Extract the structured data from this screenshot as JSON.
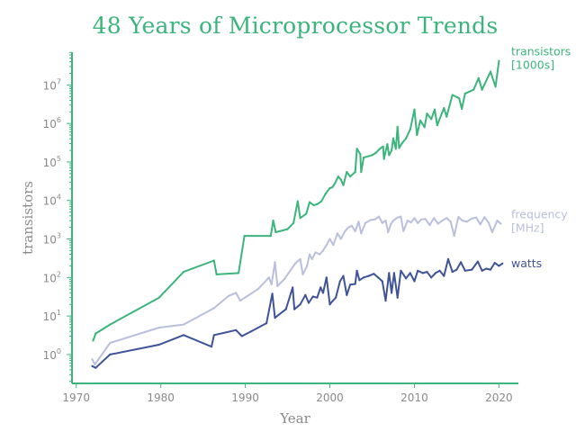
{
  "chart_data": {
    "type": "line",
    "title": "48 Years of Microprocessor Trends",
    "xlabel": "Year",
    "ylabel": "transistors",
    "xlim": [
      1969.5,
      2022.3
    ],
    "ylim_log10": [
      -0.75,
      7.85
    ],
    "y_scale": "log",
    "x_ticks": [
      1970,
      1980,
      1990,
      2000,
      2010,
      2020
    ],
    "y_ticks": [
      {
        "base": "10",
        "exp": "0"
      },
      {
        "base": "10",
        "exp": "1"
      },
      {
        "base": "10",
        "exp": "2"
      },
      {
        "base": "10",
        "exp": "3"
      },
      {
        "base": "10",
        "exp": "4"
      },
      {
        "base": "10",
        "exp": "5"
      },
      {
        "base": "10",
        "exp": "6"
      },
      {
        "base": "10",
        "exp": "7"
      }
    ],
    "grid": false,
    "colors": {
      "title": "#3bb57b",
      "axis": "#3bb57b",
      "transistors": "#3bb57b",
      "frequency": "#b9bfdc",
      "watts": "#3f5498",
      "tick": "#8a8a8a"
    },
    "series": [
      {
        "key": "transistors",
        "label_lines": [
          "transistors",
          "[1000s]"
        ],
        "color": "#3bb57b",
        "points": [
          [
            1972.0,
            2.3
          ],
          [
            1972.3,
            3.5
          ],
          [
            1974.0,
            6.0
          ],
          [
            1979.8,
            30
          ],
          [
            1982.7,
            140
          ],
          [
            1986.3,
            275
          ],
          [
            1986.6,
            120
          ],
          [
            1989.2,
            130
          ],
          [
            1989.9,
            1200
          ],
          [
            1993.0,
            1200
          ],
          [
            1993.3,
            3000
          ],
          [
            1993.6,
            1500
          ],
          [
            1995.0,
            1800
          ],
          [
            1995.7,
            2600
          ],
          [
            1996.2,
            9500
          ],
          [
            1996.5,
            3500
          ],
          [
            1997.2,
            4500
          ],
          [
            1997.6,
            9000
          ],
          [
            1998.1,
            7500
          ],
          [
            1998.5,
            8000
          ],
          [
            1999.0,
            9500
          ],
          [
            1999.5,
            15000
          ],
          [
            2000.0,
            21000
          ],
          [
            2000.3,
            22000
          ],
          [
            2000.6,
            28000
          ],
          [
            2001.0,
            42000
          ],
          [
            2001.3,
            35000
          ],
          [
            2001.6,
            25000
          ],
          [
            2002.0,
            55000
          ],
          [
            2002.4,
            42000
          ],
          [
            2003.0,
            55000
          ],
          [
            2003.2,
            220000
          ],
          [
            2003.6,
            160000
          ],
          [
            2003.7,
            55000
          ],
          [
            2004.0,
            130000
          ],
          [
            2005.0,
            150000
          ],
          [
            2005.4,
            170000
          ],
          [
            2006.0,
            230000
          ],
          [
            2006.3,
            250000
          ],
          [
            2006.4,
            120000
          ],
          [
            2006.8,
            290000
          ],
          [
            2007.0,
            150000
          ],
          [
            2007.3,
            200000
          ],
          [
            2007.5,
            410000
          ],
          [
            2007.8,
            220000
          ],
          [
            2008.0,
            820000
          ],
          [
            2008.2,
            230000
          ],
          [
            2008.5,
            300000
          ],
          [
            2009.0,
            410000
          ],
          [
            2009.5,
            700000
          ],
          [
            2010.0,
            2300000
          ],
          [
            2010.3,
            500000
          ],
          [
            2010.7,
            1200000
          ],
          [
            2011.2,
            800000
          ],
          [
            2011.5,
            1800000
          ],
          [
            2012.0,
            1300000
          ],
          [
            2012.4,
            2300000
          ],
          [
            2012.7,
            900000
          ],
          [
            2013.5,
            2500000
          ],
          [
            2013.8,
            1500000
          ],
          [
            2014.5,
            5500000
          ],
          [
            2015.3,
            4500000
          ],
          [
            2015.6,
            2400000
          ],
          [
            2016.0,
            6000000
          ],
          [
            2017.0,
            7500000
          ],
          [
            2017.6,
            15000000
          ],
          [
            2018.0,
            7500000
          ],
          [
            2019.0,
            22000000
          ],
          [
            2019.6,
            9000000
          ],
          [
            2020.0,
            42000000
          ]
        ]
      },
      {
        "key": "frequency",
        "label_lines": [
          "frequency",
          "[MHz]"
        ],
        "color": "#b9bfdc",
        "points": [
          [
            1971.9,
            0.75
          ],
          [
            1972.2,
            0.55
          ],
          [
            1974.0,
            2.0
          ],
          [
            1979.8,
            5.0
          ],
          [
            1982.7,
            6.0
          ],
          [
            1986.3,
            16
          ],
          [
            1988.0,
            33
          ],
          [
            1988.9,
            40
          ],
          [
            1989.4,
            25
          ],
          [
            1991.5,
            50
          ],
          [
            1992.8,
            100
          ],
          [
            1993.1,
            66
          ],
          [
            1993.5,
            250
          ],
          [
            1993.8,
            60
          ],
          [
            1994.6,
            90
          ],
          [
            1995.3,
            150
          ],
          [
            1995.9,
            230
          ],
          [
            1996.5,
            300
          ],
          [
            1996.8,
            120
          ],
          [
            1997.3,
            200
          ],
          [
            1997.6,
            400
          ],
          [
            1997.9,
            300
          ],
          [
            1998.3,
            450
          ],
          [
            1998.8,
            400
          ],
          [
            1999.2,
            500
          ],
          [
            1999.6,
            700
          ],
          [
            2000.0,
            1000
          ],
          [
            2000.4,
            700
          ],
          [
            2000.9,
            1400
          ],
          [
            2001.3,
            1000
          ],
          [
            2001.8,
            1600
          ],
          [
            2002.2,
            2000
          ],
          [
            2002.6,
            2200
          ],
          [
            2003.0,
            1600
          ],
          [
            2003.4,
            2800
          ],
          [
            2003.7,
            1400
          ],
          [
            2004.2,
            2600
          ],
          [
            2004.8,
            3100
          ],
          [
            2005.3,
            3200
          ],
          [
            2005.8,
            3800
          ],
          [
            2006.2,
            2600
          ],
          [
            2006.6,
            3000
          ],
          [
            2006.9,
            1500
          ],
          [
            2007.2,
            2400
          ],
          [
            2007.5,
            3000
          ],
          [
            2008.0,
            3600
          ],
          [
            2008.4,
            3800
          ],
          [
            2008.7,
            1600
          ],
          [
            2009.2,
            3000
          ],
          [
            2009.6,
            2700
          ],
          [
            2010.0,
            3500
          ],
          [
            2010.4,
            2600
          ],
          [
            2010.8,
            3200
          ],
          [
            2011.3,
            3300
          ],
          [
            2011.8,
            2300
          ],
          [
            2012.3,
            3500
          ],
          [
            2012.8,
            2500
          ],
          [
            2013.3,
            3000
          ],
          [
            2013.8,
            3500
          ],
          [
            2014.3,
            2800
          ],
          [
            2014.7,
            1200
          ],
          [
            2015.2,
            3700
          ],
          [
            2015.7,
            3000
          ],
          [
            2016.2,
            2800
          ],
          [
            2016.8,
            3400
          ],
          [
            2017.3,
            3600
          ],
          [
            2017.8,
            2400
          ],
          [
            2018.3,
            3700
          ],
          [
            2018.8,
            2600
          ],
          [
            2019.2,
            1500
          ],
          [
            2019.8,
            3000
          ],
          [
            2020.2,
            2500
          ]
        ]
      },
      {
        "key": "watts",
        "label_lines": [
          "watts"
        ],
        "color": "#3f5498",
        "points": [
          [
            1971.9,
            0.5
          ],
          [
            1972.3,
            0.45
          ],
          [
            1974.0,
            1.0
          ],
          [
            1979.8,
            1.8
          ],
          [
            1982.7,
            3.2
          ],
          [
            1986.0,
            1.6
          ],
          [
            1986.3,
            3.2
          ],
          [
            1988.9,
            4.3
          ],
          [
            1989.6,
            3.0
          ],
          [
            1990.7,
            4.0
          ],
          [
            1992.5,
            6.5
          ],
          [
            1993.2,
            38
          ],
          [
            1993.5,
            9.0
          ],
          [
            1994.8,
            15
          ],
          [
            1995.6,
            55
          ],
          [
            1995.8,
            15
          ],
          [
            1996.5,
            20
          ],
          [
            1997.1,
            35
          ],
          [
            1997.5,
            22
          ],
          [
            1998.0,
            32
          ],
          [
            1998.5,
            30
          ],
          [
            1998.9,
            55
          ],
          [
            1999.2,
            40
          ],
          [
            1999.6,
            100
          ],
          [
            2000.0,
            20
          ],
          [
            2000.3,
            24
          ],
          [
            2000.7,
            30
          ],
          [
            2001.2,
            80
          ],
          [
            2001.6,
            110
          ],
          [
            2002.0,
            35
          ],
          [
            2002.4,
            65
          ],
          [
            2003.0,
            68
          ],
          [
            2003.2,
            150
          ],
          [
            2003.5,
            85
          ],
          [
            2004.0,
            100
          ],
          [
            2004.6,
            110
          ],
          [
            2005.2,
            125
          ],
          [
            2005.7,
            100
          ],
          [
            2006.2,
            80
          ],
          [
            2006.6,
            25
          ],
          [
            2007.0,
            130
          ],
          [
            2007.3,
            40
          ],
          [
            2007.6,
            130
          ],
          [
            2008.0,
            30
          ],
          [
            2008.4,
            150
          ],
          [
            2009.0,
            95
          ],
          [
            2009.5,
            130
          ],
          [
            2010.0,
            80
          ],
          [
            2010.4,
            150
          ],
          [
            2011.0,
            130
          ],
          [
            2011.5,
            140
          ],
          [
            2012.0,
            100
          ],
          [
            2012.5,
            130
          ],
          [
            2013.0,
            150
          ],
          [
            2013.5,
            110
          ],
          [
            2014.0,
            300
          ],
          [
            2014.5,
            140
          ],
          [
            2015.0,
            160
          ],
          [
            2015.5,
            250
          ],
          [
            2016.0,
            150
          ],
          [
            2016.8,
            160
          ],
          [
            2017.5,
            260
          ],
          [
            2018.0,
            150
          ],
          [
            2018.5,
            170
          ],
          [
            2019.0,
            160
          ],
          [
            2019.5,
            240
          ],
          [
            2020.0,
            200
          ],
          [
            2020.4,
            230
          ]
        ]
      }
    ]
  }
}
